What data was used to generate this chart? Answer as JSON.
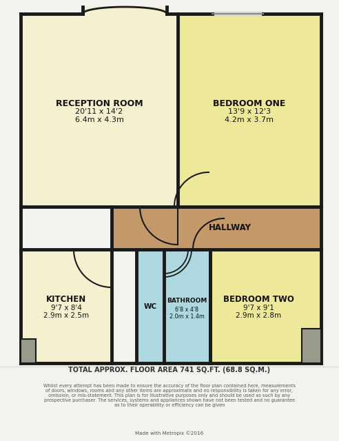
{
  "bg_color": "#f2f2ee",
  "wall_color": "#1a1a1a",
  "wall_lw": 4.0,
  "room_colors": {
    "reception": "#f5f0d0",
    "bedroom_one": "#ede89a",
    "bedroom_two": "#ede89a",
    "kitchen": "#f5f0d0",
    "hallway": "#c4996a",
    "bathroom": "#aed8e0",
    "wc": "#aed8e0",
    "outside_bg": "#f2f2ee",
    "porch_fill": "#f5f0d0",
    "gray_step": "#9a9a8a"
  },
  "footer_title": "TOTAL APPROX. FLOOR AREA 741 SQ.FT. (68.8 SQ.M.)",
  "footer_body": "Whilst every attempt has been made to ensure the accuracy of the floor plan contained here, measurements\nof doors, windows, rooms and any other items are approximate and no responsibility is taken for any error,\nomission, or mis-statement. This plan is for illustrative purposes only and should be used as such by any\nprospective purchaser. The services, systems and appliances shown have not been tested and no guarantee\nas to their operability or efficiency can be given",
  "footer_credit": "Made with Metropix ©2016",
  "labels": {
    "reception": {
      "text": "RECEPTION ROOM",
      "sub": "20'11 x 14'2\n6.4m x 4.3m"
    },
    "bedroom_one": {
      "text": "BEDROOM ONE",
      "sub": "13'9 x 12'3\n4.2m x 3.7m"
    },
    "bedroom_two": {
      "text": "BEDROOM TWO",
      "sub": "9'7 x 9'1\n2.9m x 2.8m"
    },
    "kitchen": {
      "text": "KITCHEN",
      "sub": "9'7 x 8'4\n2.9m x 2.5m"
    },
    "hallway": {
      "text": "HALLWAY",
      "sub": ""
    },
    "bathroom": {
      "text": "BATHROOM",
      "sub": "6'8 x 4'8\n2.0m x 1.4m"
    },
    "wc": {
      "text": "WC",
      "sub": ""
    }
  }
}
